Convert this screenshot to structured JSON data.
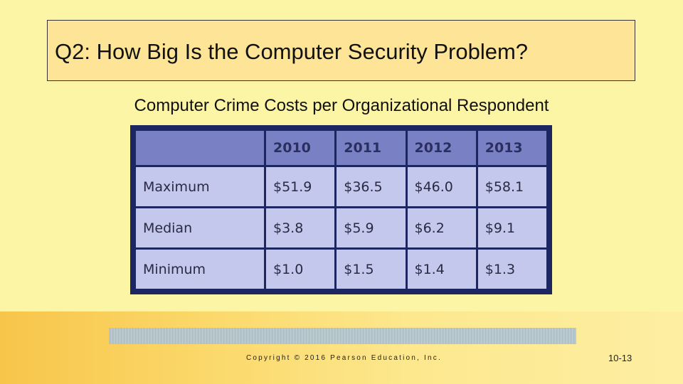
{
  "slide": {
    "title": "Q2: How Big Is the Computer Security Problem?",
    "subtitle": "Computer Crime Costs per Organizational Respondent",
    "footer": {
      "copyright": "Copyright © 2016 Pearson Education, Inc.",
      "page_number": "10-13"
    }
  },
  "table": {
    "headers": [
      "",
      "2010",
      "2011",
      "2012",
      "2013"
    ],
    "rows": [
      {
        "label": "Maximum",
        "values": [
          "$51.9",
          "$36.5",
          "$46.0",
          "$58.1"
        ]
      },
      {
        "label": "Median",
        "values": [
          "$3.8",
          "$5.9",
          "$6.2",
          "$9.1"
        ]
      },
      {
        "label": "Minimum",
        "values": [
          "$1.0",
          "$1.5",
          "$1.4",
          "$1.3"
        ]
      }
    ]
  },
  "colors": {
    "background": "#fdf5a6",
    "title_box": "#fde497",
    "table_border": "#1c2660",
    "table_header": "#7a80c4",
    "table_cell": "#c4c8ec"
  }
}
